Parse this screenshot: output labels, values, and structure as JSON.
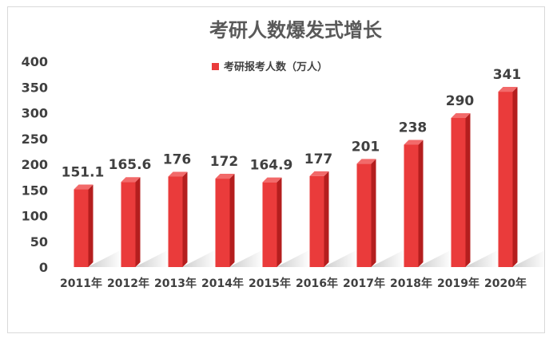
{
  "chart_data": {
    "type": "bar",
    "title": "考研人数爆发式增长",
    "categories": [
      "2011年",
      "2012年",
      "2013年",
      "2014年",
      "2015年",
      "2016年",
      "2017年",
      "2018年",
      "2019年",
      "2020年"
    ],
    "series": [
      {
        "name": "考研报考人数（万人）",
        "values": [
          151.1,
          165.6,
          176,
          172,
          164.9,
          177,
          201,
          238,
          290,
          341
        ],
        "labels": [
          "151.1",
          "165.6",
          "176",
          "172",
          "164.9",
          "177",
          "201",
          "238",
          "290",
          "341"
        ]
      }
    ],
    "yticks": [
      "0",
      "50",
      "100",
      "150",
      "200",
      "250",
      "300",
      "350",
      "400"
    ],
    "ylim": [
      0,
      400
    ],
    "legend_position": "top",
    "grid": false,
    "bar_style": "3d",
    "colors": {
      "bar_front": "#ea3b3b",
      "bar_side": "#b41e1e",
      "bar_top": "#f26a6a",
      "shadow": "#c8c8c8"
    }
  }
}
